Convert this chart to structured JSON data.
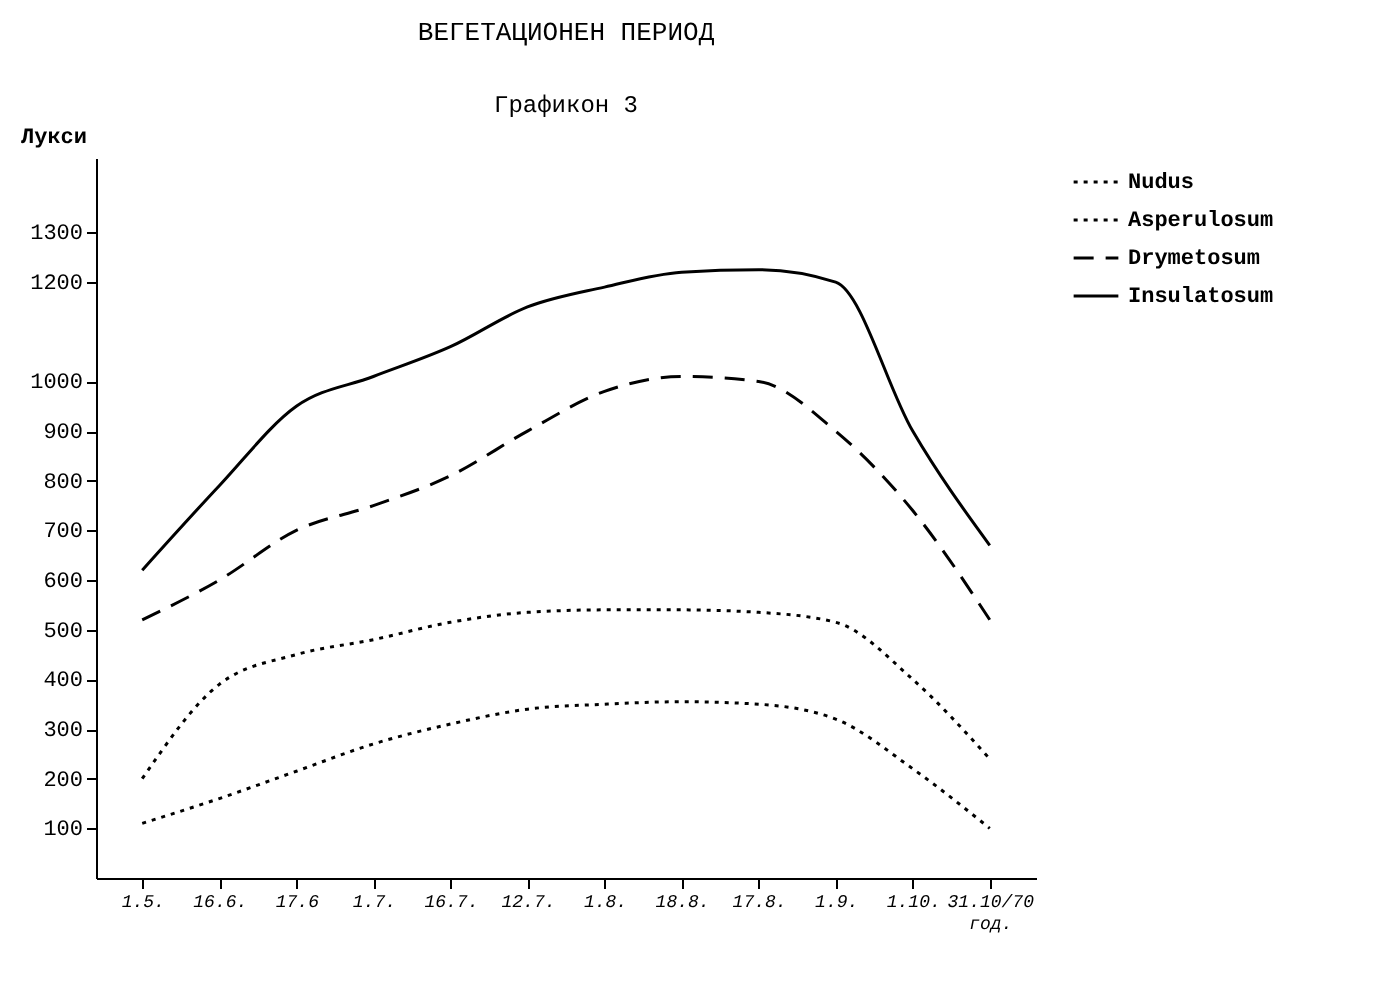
{
  "chart_data": {
    "type": "line",
    "title": "ВЕГЕТАЦИОНЕН   ПЕРИОД",
    "subtitle": "Графикон 3",
    "ylabel": "Лукси",
    "categories": [
      "1.5.",
      "16.6.",
      "17.6",
      "1.7.",
      "16.7.",
      "12.7.",
      "1.8.",
      "18.8.",
      "17.8.",
      "1.9.",
      "1.10.",
      "31.10/70 год."
    ],
    "series": [
      {
        "name": "Nudus",
        "color": "#000000",
        "line_style": "dotted",
        "values": [
          110,
          160,
          215,
          270,
          310,
          340,
          350,
          355,
          350,
          320,
          220,
          100
        ]
      },
      {
        "name": "Asperulosum",
        "color": "#000000",
        "line_style": "dotted",
        "values": [
          200,
          390,
          450,
          480,
          515,
          535,
          540,
          540,
          535,
          515,
          400,
          240
        ]
      },
      {
        "name": "Drymetosum",
        "color": "#000000",
        "line_style": "dashed",
        "values": [
          520,
          600,
          700,
          750,
          810,
          900,
          980,
          1010,
          1000,
          900,
          740,
          520
        ]
      },
      {
        "name": "Insulatosum",
        "color": "#000000",
        "line_style": "solid",
        "values": [
          620,
          790,
          950,
          1010,
          1070,
          1150,
          1190,
          1220,
          1225,
          1200,
          900,
          670
        ]
      }
    ],
    "ylim": [
      0,
      1450
    ],
    "yticks": [
      100,
      200,
      300,
      400,
      500,
      600,
      700,
      800,
      900,
      1000,
      1200,
      1300
    ],
    "grid": false,
    "legend": "right",
    "marker": "none"
  }
}
